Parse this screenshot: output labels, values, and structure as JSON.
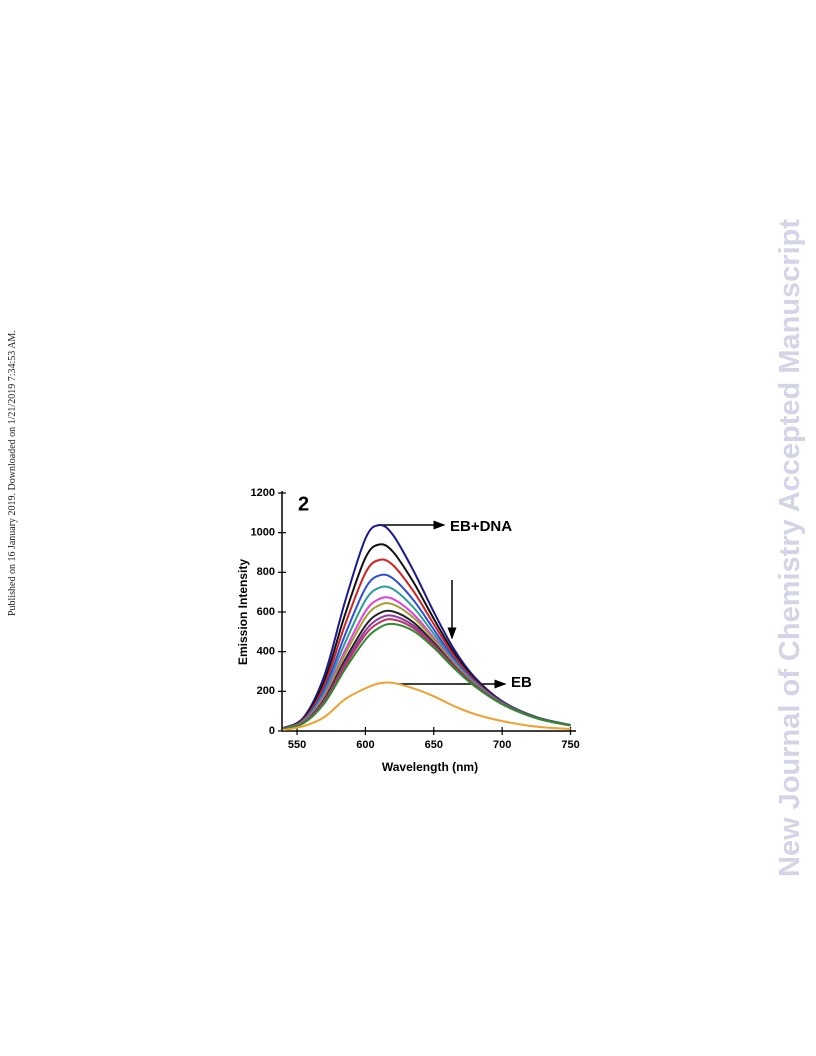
{
  "page": {
    "side_note": "Published on 16 January 2019. Downloaded on 1/21/2019 7:34:53 AM.",
    "watermark": "New Journal of Chemistry Accepted Manuscript"
  },
  "chart_data": {
    "type": "line",
    "x_label": "Wavelength (nm)",
    "y_label": "Emission Intensity",
    "annotations": [
      "2",
      "EB+DNA",
      "EB"
    ],
    "x": [
      540,
      555,
      570,
      585,
      600,
      610,
      620,
      635,
      650,
      665,
      680,
      700,
      725,
      750
    ],
    "series": [
      {
        "color": "#1a1a8c",
        "values": [
          15,
          70,
          280,
          650,
          970,
          1038,
          990,
          810,
          600,
          410,
          270,
          150,
          70,
          30
        ]
      },
      {
        "color": "#111111",
        "values": [
          14,
          64,
          253,
          585,
          873,
          940,
          905,
          752,
          566,
          392,
          261,
          147,
          69,
          30
        ]
      },
      {
        "color": "#d42020",
        "values": [
          13,
          60,
          232,
          534,
          797,
          862,
          837,
          706,
          539,
          378,
          255,
          145,
          68,
          29
        ]
      },
      {
        "color": "#2b4fd6",
        "values": [
          13,
          55,
          211,
          483,
          720,
          784,
          770,
          661,
          512,
          363,
          248,
          143,
          68,
          29
        ]
      },
      {
        "color": "#2a9d9a",
        "values": [
          12,
          52,
          195,
          443,
          659,
          722,
          716,
          624,
          490,
          352,
          243,
          141,
          67,
          29
        ]
      },
      {
        "color": "#e040e0",
        "values": [
          11,
          48,
          179,
          405,
          603,
          665,
          666,
          590,
          470,
          342,
          238,
          139,
          66,
          29
        ]
      },
      {
        "color": "#a0a030",
        "values": [
          11,
          47,
          171,
          385,
          572,
          634,
          639,
          572,
          460,
          336,
          235,
          138,
          66,
          28
        ]
      },
      {
        "color": "#222222",
        "values": [
          11,
          44,
          160,
          358,
          531,
          593,
          603,
          548,
          445,
          328,
          231,
          137,
          66,
          28
        ]
      },
      {
        "color": "#8a3aa0",
        "values": [
          10,
          43,
          153,
          341,
          506,
          567,
          581,
          532,
          436,
          324,
          229,
          136,
          65,
          28
        ]
      },
      {
        "color": "#c0306a",
        "values": [
          10,
          42,
          147,
          327,
          486,
          546,
          563,
          520,
          429,
          320,
          227,
          136,
          65,
          28
        ]
      },
      {
        "color": "#2e8b2e",
        "values": [
          10,
          40,
          140,
          310,
          460,
          520,
          540,
          505,
          420,
          315,
          225,
          135,
          65,
          28
        ]
      },
      {
        "color": "#f0a030",
        "values": [
          5,
          25,
          70,
          160,
          215,
          240,
          243,
          215,
          175,
          125,
          85,
          50,
          22,
          10
        ]
      }
    ],
    "xlim": [
      539,
      754
    ],
    "ylim": [
      0,
      1200
    ],
    "xticks": [
      550,
      600,
      650,
      700,
      750
    ],
    "yticks": [
      0,
      200,
      400,
      600,
      800,
      1000,
      1200
    ]
  }
}
